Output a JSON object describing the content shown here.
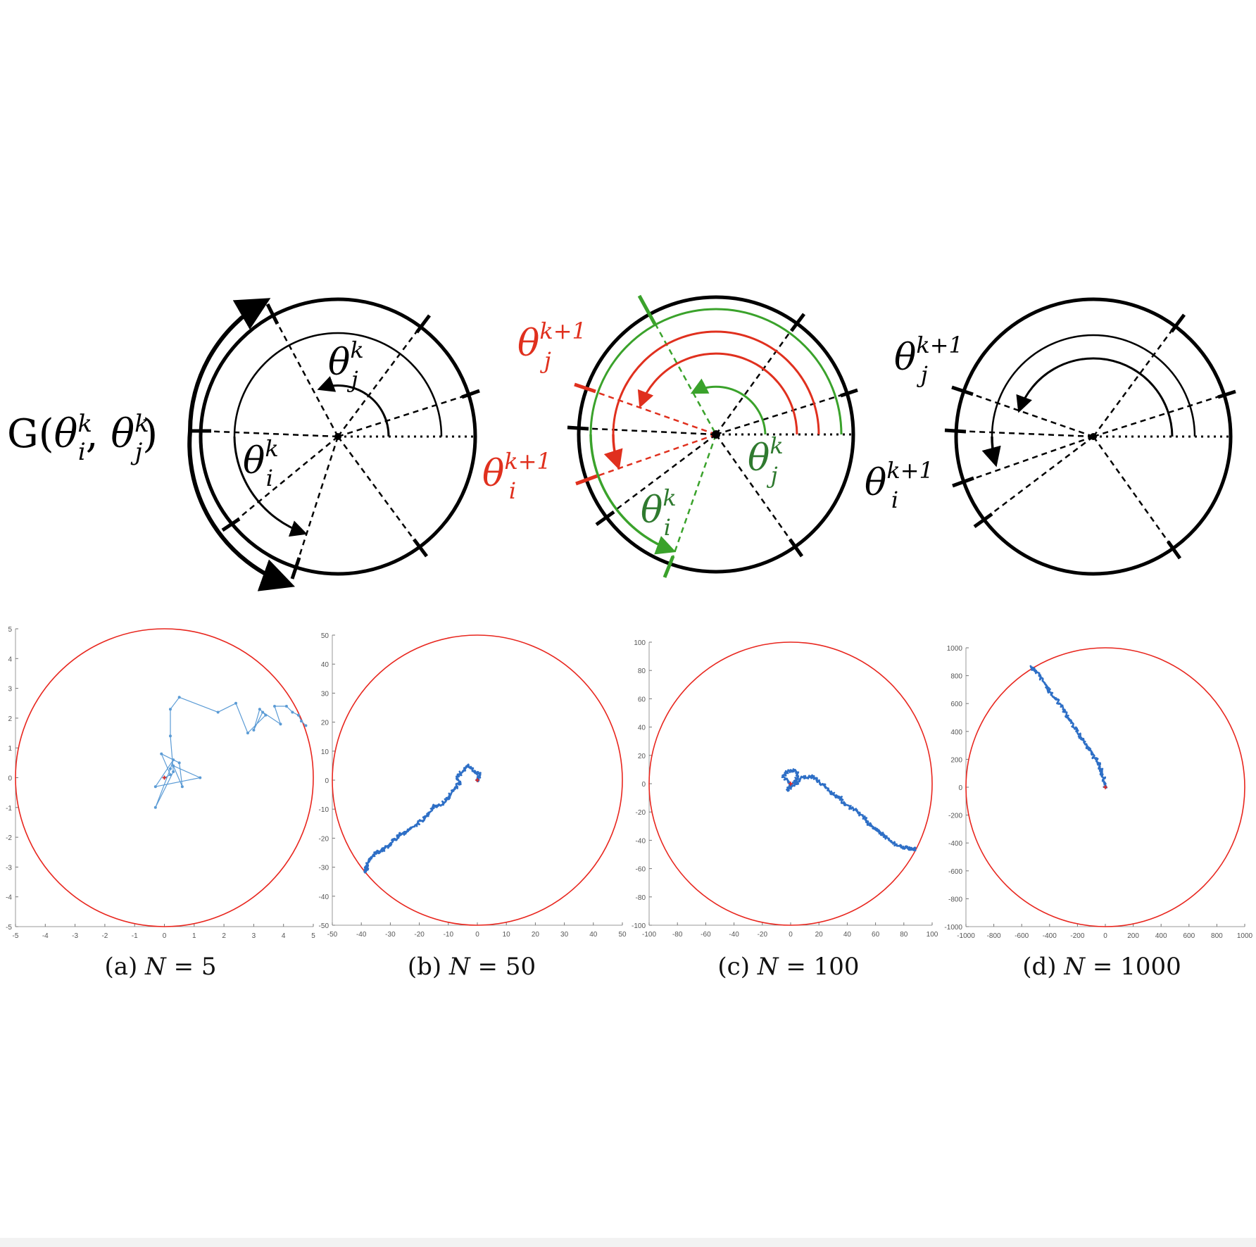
{
  "diagrams": {
    "left": {
      "g_label_prefix": "G(",
      "g_label_sep": ", ",
      "g_label_suffix": ")",
      "theta_i": "θ",
      "theta_i_sup": "k",
      "theta_i_sub": "i",
      "theta_j": "θ",
      "theta_j_sup": "k",
      "theta_j_sub": "j"
    },
    "middle": {
      "theta_j_next": "θ",
      "theta_j_next_sup": "k+1",
      "theta_j_next_sub": "j",
      "theta_i_next": "θ",
      "theta_i_next_sup": "k+1",
      "theta_i_next_sub": "i",
      "theta_j": "θ",
      "theta_j_sup": "k",
      "theta_j_sub": "j",
      "theta_i": "θ",
      "theta_i_sup": "k",
      "theta_i_sub": "i",
      "red": "#e0301e",
      "green": "#3aa22b",
      "dark_green": "#2f7a2f"
    },
    "right": {
      "theta_j_next": "θ",
      "theta_j_next_sup": "k+1",
      "theta_j_next_sub": "j",
      "theta_i_next": "θ",
      "theta_i_next_sup": "k+1",
      "theta_i_next_sub": "i"
    }
  },
  "chart_data": [
    {
      "type": "scatter",
      "caption_letter": "(a)",
      "caption_var": "N",
      "caption_eq": " = 5",
      "radius": 5,
      "xlim": [
        -5,
        5
      ],
      "ylim": [
        -5,
        5
      ],
      "xticks": [
        "-5",
        "-4",
        "-3",
        "-2",
        "-1",
        "0",
        "1",
        "2",
        "3",
        "4",
        "5"
      ],
      "yticks": [
        "5",
        "4",
        "3",
        "2",
        "1",
        "0",
        "-1",
        "-2",
        "-3",
        "-4",
        "-5"
      ],
      "line_style": "light",
      "path": [
        [
          0,
          0
        ],
        [
          0.2,
          0.1
        ],
        [
          -0.1,
          0.8
        ],
        [
          0.5,
          0.5
        ],
        [
          0.6,
          -0.3
        ],
        [
          0.3,
          0.4
        ],
        [
          1.2,
          0
        ],
        [
          -0.3,
          -0.3
        ],
        [
          0.3,
          0.6
        ],
        [
          0.2,
          0.3
        ],
        [
          -0.3,
          -1
        ],
        [
          0.3,
          0.2
        ],
        [
          0.2,
          1.4
        ],
        [
          0.2,
          2.3
        ],
        [
          0.5,
          2.7
        ],
        [
          1.8,
          2.2
        ],
        [
          2.4,
          2.5
        ],
        [
          2.8,
          1.5
        ],
        [
          3.4,
          2.1
        ],
        [
          3.2,
          2.3
        ],
        [
          3.0,
          1.6
        ],
        [
          3.3,
          2.2
        ],
        [
          3.9,
          1.8
        ],
        [
          3.7,
          2.4
        ],
        [
          4.1,
          2.4
        ],
        [
          4.3,
          2.2
        ],
        [
          4.5,
          2.1
        ],
        [
          4.6,
          1.9
        ],
        [
          4.75,
          1.75
        ]
      ],
      "start": [
        0,
        0
      ],
      "colors": {
        "circle": "#e8261e",
        "path": "#5b9bd5",
        "start": "#e8261e"
      }
    },
    {
      "type": "scatter",
      "caption_letter": "(b)",
      "caption_var": "N",
      "caption_eq": " = 50",
      "radius": 50,
      "xlim": [
        -50,
        50
      ],
      "ylim": [
        -50,
        50
      ],
      "xticks": [
        "-50",
        "-40",
        "-30",
        "-20",
        "-10",
        "0",
        "10",
        "20",
        "30",
        "40",
        "50"
      ],
      "yticks": [
        "50",
        "40",
        "30",
        "20",
        "10",
        "0",
        "-10",
        "-20",
        "-30",
        "-40",
        "-50"
      ],
      "line_style": "dense",
      "path": [
        [
          0,
          0
        ],
        [
          1,
          2
        ],
        [
          -1,
          3
        ],
        [
          -3,
          5
        ],
        [
          -5,
          3
        ],
        [
          -7,
          1
        ],
        [
          -6,
          -1
        ],
        [
          -8,
          -3
        ],
        [
          -10,
          -6
        ],
        [
          -12,
          -8
        ],
        [
          -15,
          -9
        ],
        [
          -17,
          -12
        ],
        [
          -19,
          -14
        ],
        [
          -22,
          -16
        ],
        [
          -25,
          -18
        ],
        [
          -27,
          -19
        ],
        [
          -29,
          -21
        ],
        [
          -31,
          -23
        ],
        [
          -33,
          -24
        ],
        [
          -35,
          -25
        ],
        [
          -37,
          -27
        ],
        [
          -38,
          -30
        ],
        [
          -39,
          -32
        ]
      ],
      "start": [
        0,
        0
      ],
      "colors": {
        "circle": "#e8261e",
        "path": "#2e6fc6",
        "start": "#e8261e"
      }
    },
    {
      "type": "scatter",
      "caption_letter": "(c)",
      "caption_var": "N",
      "caption_eq": " = 100",
      "radius": 100,
      "xlim": [
        -100,
        100
      ],
      "ylim": [
        -100,
        100
      ],
      "xticks": [
        "-100",
        "-80",
        "-60",
        "-40",
        "-20",
        "0",
        "20",
        "40",
        "60",
        "80",
        "100"
      ],
      "yticks": [
        "100",
        "80",
        "60",
        "40",
        "20",
        "0",
        "-20",
        "-40",
        "-60",
        "-80",
        "-100"
      ],
      "line_style": "dense",
      "path": [
        [
          0,
          0
        ],
        [
          -5,
          5
        ],
        [
          -3,
          8
        ],
        [
          2,
          10
        ],
        [
          5,
          7
        ],
        [
          3,
          2
        ],
        [
          -2,
          -4
        ],
        [
          1,
          -2
        ],
        [
          8,
          4
        ],
        [
          15,
          5
        ],
        [
          20,
          2
        ],
        [
          25,
          -3
        ],
        [
          30,
          -8
        ],
        [
          35,
          -10
        ],
        [
          38,
          -15
        ],
        [
          45,
          -18
        ],
        [
          50,
          -22
        ],
        [
          55,
          -28
        ],
        [
          60,
          -32
        ],
        [
          65,
          -36
        ],
        [
          70,
          -40
        ],
        [
          75,
          -43
        ],
        [
          80,
          -45
        ],
        [
          85,
          -46
        ],
        [
          88,
          -46
        ]
      ],
      "start": [
        0,
        0
      ],
      "colors": {
        "circle": "#e8261e",
        "path": "#2e6fc6",
        "start": "#e8261e"
      }
    },
    {
      "type": "scatter",
      "caption_letter": "(d)",
      "caption_var": "N",
      "caption_eq": " = 1000",
      "radius": 1000,
      "xlim": [
        -1000,
        1000
      ],
      "ylim": [
        -1000,
        1000
      ],
      "xticks": [
        "-1000",
        "-800",
        "-600",
        "-400",
        "-200",
        "0",
        "200",
        "400",
        "600",
        "800",
        "1000"
      ],
      "yticks": [
        "1000",
        "800",
        "600",
        "400",
        "200",
        "0",
        "-200",
        "-400",
        "-600",
        "-800",
        "-1000"
      ],
      "line_style": "dense",
      "path": [
        [
          0,
          0
        ],
        [
          -10,
          60
        ],
        [
          -30,
          120
        ],
        [
          -50,
          180
        ],
        [
          -90,
          230
        ],
        [
          -130,
          290
        ],
        [
          -170,
          350
        ],
        [
          -210,
          410
        ],
        [
          -250,
          470
        ],
        [
          -290,
          540
        ],
        [
          -330,
          600
        ],
        [
          -380,
          660
        ],
        [
          -420,
          720
        ],
        [
          -460,
          780
        ],
        [
          -510,
          840
        ],
        [
          -530,
          860
        ]
      ],
      "start": [
        0,
        0
      ],
      "colors": {
        "circle": "#e8261e",
        "path": "#2e6fc6",
        "start": "#e8261e"
      }
    }
  ]
}
